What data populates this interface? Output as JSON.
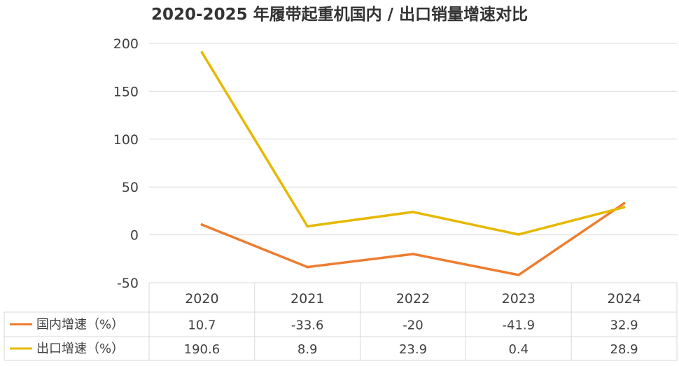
{
  "chart_data": {
    "type": "line",
    "title": "2020-2025 年履带起重机国内 / 出口销量增速对比",
    "categories": [
      "2020",
      "2021",
      "2022",
      "2023",
      "2024"
    ],
    "ylim": [
      -50,
      200
    ],
    "yticks": [
      200,
      150,
      100,
      50,
      0,
      -50
    ],
    "grid": true,
    "legend": "data-table-bottom",
    "series": [
      {
        "name": "国内增速（%）",
        "color": "#ED7D31",
        "values": [
          10.7,
          -33.6,
          -20,
          -41.9,
          32.9
        ],
        "labels": [
          "10.7",
          "-33.6",
          "-20",
          "-41.9",
          "32.9"
        ]
      },
      {
        "name": "出口增速（%）",
        "color": "#E6B800",
        "values": [
          190.6,
          8.9,
          23.9,
          0.4,
          28.9
        ],
        "labels": [
          "190.6",
          "8.9",
          "23.9",
          "0.4",
          "28.9"
        ]
      }
    ]
  }
}
